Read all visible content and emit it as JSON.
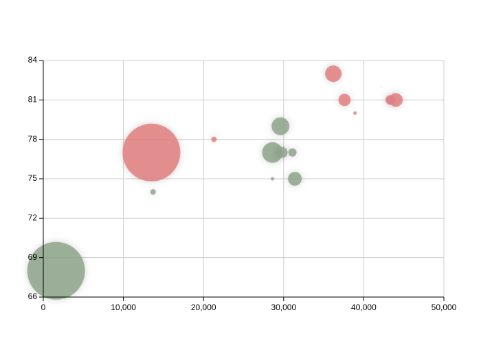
{
  "chart_data": {
    "type": "bubble",
    "xlim": [
      0,
      50000
    ],
    "xticks": [
      0,
      {
        "value": 10000,
        "label": "10,000"
      },
      {
        "value": 20000,
        "label": "20,000"
      },
      {
        "value": 30000,
        "label": "30,000"
      },
      {
        "value": 40000,
        "label": "40,000"
      },
      {
        "value": 50000,
        "label": "50,000"
      }
    ],
    "ylim": [
      66,
      84
    ],
    "yticks": [
      66,
      69,
      72,
      75,
      78,
      81,
      84
    ],
    "grid": true,
    "series": [
      {
        "color": "#e07f80",
        "x": [
          13500,
          21300,
          36200,
          37600,
          38900,
          42200,
          43300,
          44000
        ],
        "values": [
          77,
          78,
          83,
          81,
          80,
          82,
          81,
          81
        ],
        "sizes": [
          441,
          4,
          36,
          20,
          1.5,
          0.1,
          12,
          25
        ]
      },
      {
        "color": "#8ea489",
        "x": [
          1600,
          13700,
          28600,
          29600,
          29800,
          31100,
          28600,
          31400
        ],
        "values": [
          68,
          74,
          77,
          79,
          77,
          77,
          75,
          75
        ],
        "sizes": [
          441,
          4,
          56,
          42,
          16,
          9,
          1.5,
          25
        ]
      }
    ]
  }
}
